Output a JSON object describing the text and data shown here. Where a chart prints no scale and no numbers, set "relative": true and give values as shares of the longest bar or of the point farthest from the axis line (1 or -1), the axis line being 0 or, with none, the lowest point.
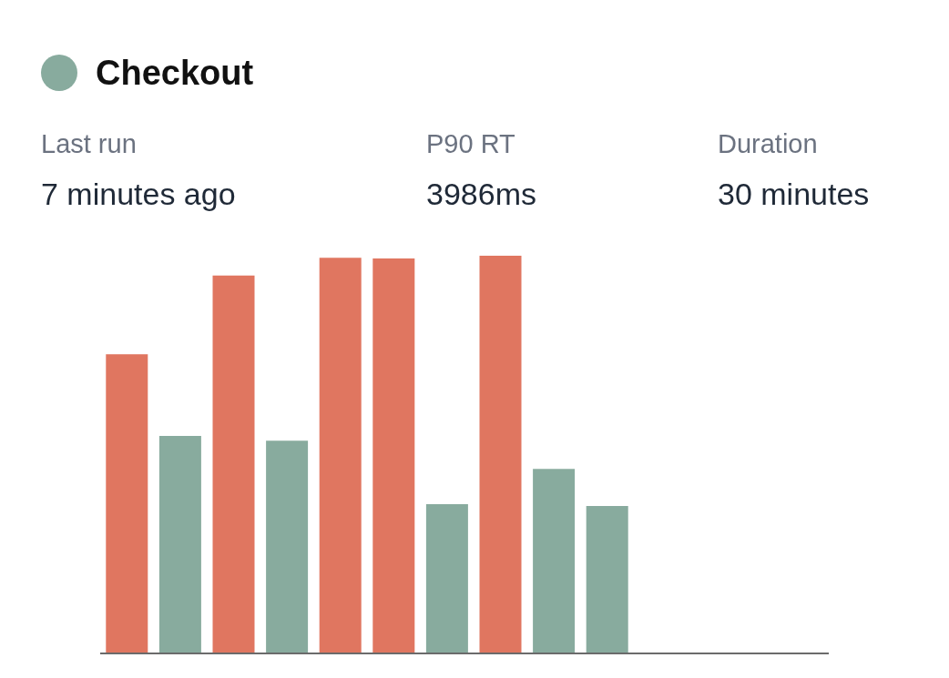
{
  "chart_data": {
    "type": "bar",
    "title": "Checkout",
    "relative": true,
    "annotations": [
      "Last run",
      "7 minutes ago",
      "P90 RT",
      "3986ms",
      "Duration",
      "30 minutes"
    ],
    "categories": [
      null,
      null,
      null,
      null,
      null,
      null,
      null,
      null,
      null,
      null
    ],
    "values": [
      0.752,
      0.546,
      0.95,
      0.534,
      0.995,
      0.993,
      0.374,
      1,
      0.463,
      0.369
    ],
    "colors": [
      "#e07660",
      "#88ab9e",
      "#e07660",
      "#88ab9e",
      "#e07660",
      "#e07660",
      "#88ab9e",
      "#e07660",
      "#88ab9e",
      "#88ab9e"
    ],
    "grid": false,
    "legend": false
  }
}
